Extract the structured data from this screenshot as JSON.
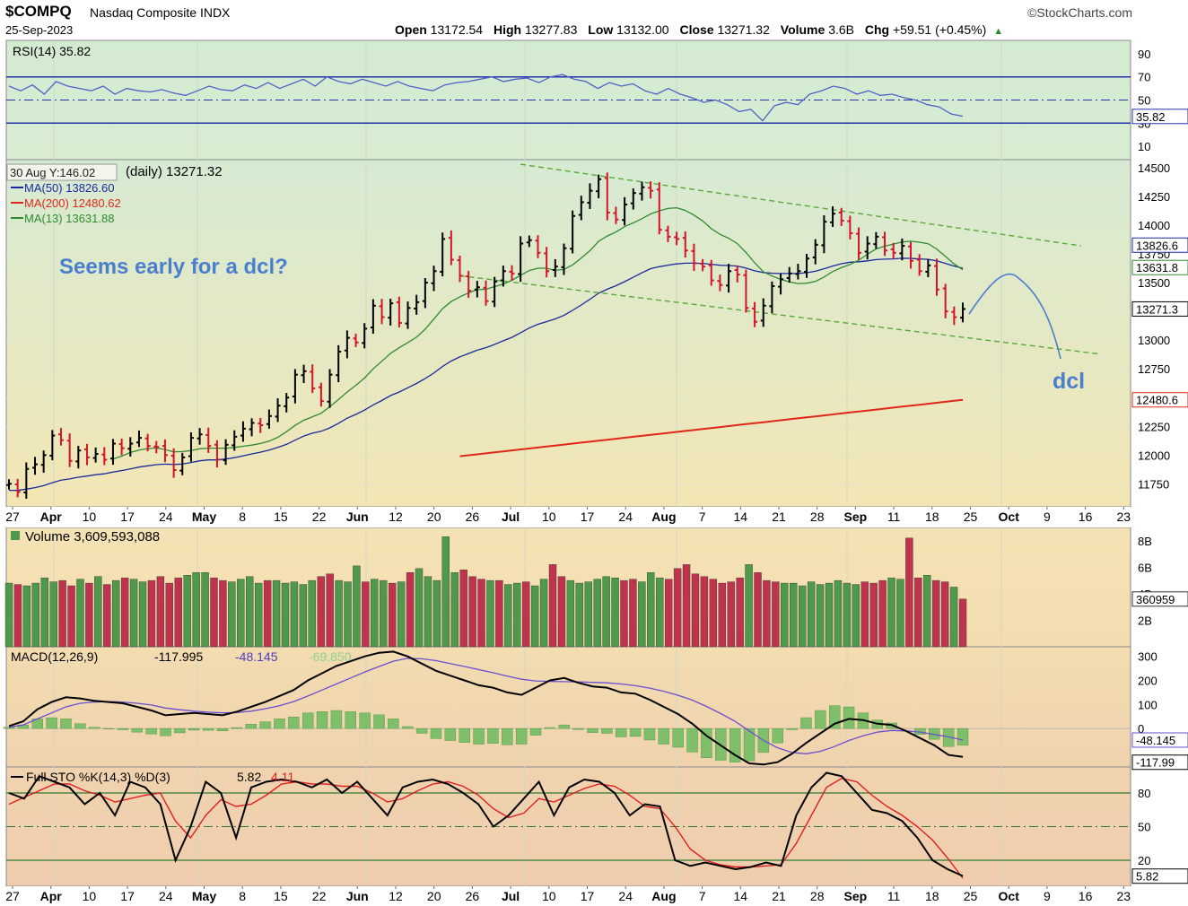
{
  "header": {
    "symbol": "$COMPQ",
    "name": "Nasdaq Composite INDX",
    "date": "25-Sep-2023",
    "brand": "©StockCharts.com",
    "open_label": "Open",
    "open": "13172.54",
    "high_label": "High",
    "high": "13277.83",
    "low_label": "Low",
    "low": "13132.00",
    "close_label": "Close",
    "close": "13271.32",
    "volume_label": "Volume",
    "volume": "3.6B",
    "chg_label": "Chg",
    "chg": "+59.51 (+0.45%)"
  },
  "colors": {
    "up": "#000000",
    "down": "#d4142a",
    "ma50": "#1a2a9c",
    "ma200": "#e0271a",
    "ma13": "#2f8a2f",
    "trend": "#5aa83a",
    "annotation": "#4a7fd0",
    "vol_up": "#4f9a4a",
    "vol_down": "#c0334f"
  },
  "chart_data": [
    {
      "type": "line",
      "panel": "RSI",
      "legend": "RSI(14) 35.82",
      "yticks": [
        90,
        70,
        50,
        30,
        10
      ],
      "last_label": "35.82",
      "ylim": [
        0,
        100
      ],
      "values": [
        62,
        58,
        63,
        55,
        66,
        62,
        60,
        58,
        62,
        55,
        60,
        58,
        57,
        59,
        56,
        54,
        58,
        62,
        59,
        58,
        63,
        60,
        65,
        60,
        64,
        68,
        62,
        70,
        66,
        64,
        68,
        65,
        62,
        66,
        62,
        60,
        58,
        63,
        65,
        66,
        68,
        70,
        66,
        68,
        69,
        65,
        70,
        72,
        68,
        66,
        60,
        65,
        62,
        64,
        58,
        55,
        60,
        55,
        52,
        48,
        50,
        46,
        40,
        42,
        32,
        45,
        48,
        46,
        55,
        58,
        62,
        60,
        55,
        58,
        54,
        55,
        52,
        50,
        46,
        44,
        38,
        36
      ]
    },
    {
      "type": "candlestick",
      "panel": "Price",
      "legend_title": "(daily) 13271.32",
      "tooltip": "30 Aug Y:146.02",
      "ma_legend": [
        "MA(50) 13826.60",
        "MA(200) 12480.62",
        "MA(13) 13631.88"
      ],
      "annotation_text": "Seems early for a dcl?",
      "dcl_label": "dcl",
      "yticks": [
        14500,
        14250,
        14000,
        13750,
        13500,
        13250,
        13000,
        12750,
        12500,
        12250,
        12000,
        11750
      ],
      "ylim": [
        11550,
        14570
      ],
      "last_labels": [
        "13826.6",
        "13631.8",
        "13271.3",
        "12480.6"
      ],
      "closes": [
        11750,
        11680,
        11880,
        11920,
        12000,
        12170,
        12130,
        11950,
        12040,
        11980,
        12010,
        11960,
        12100,
        12060,
        12100,
        12150,
        12080,
        12070,
        12000,
        11870,
        11980,
        12150,
        12180,
        12080,
        11960,
        12090,
        12160,
        12230,
        12280,
        12260,
        12340,
        12430,
        12500,
        12700,
        12730,
        12580,
        12470,
        12700,
        12900,
        13020,
        12980,
        13100,
        13300,
        13200,
        13320,
        13150,
        13280,
        13330,
        13500,
        13600,
        13880,
        13700,
        13560,
        13430,
        13460,
        13340,
        13510,
        13600,
        13580,
        13840,
        13870,
        13760,
        13600,
        13640,
        13800,
        14080,
        14200,
        14300,
        14400,
        14110,
        14050,
        14180,
        14280,
        14330,
        14300,
        13960,
        13900,
        13880,
        13780,
        13670,
        13640,
        13520,
        13480,
        13600,
        13570,
        13280,
        13160,
        13300,
        13470,
        13530,
        13580,
        13600,
        13710,
        13830,
        14030,
        14100,
        14040,
        13930,
        13760,
        13840,
        13900,
        13780,
        13760,
        13820,
        13690,
        13600,
        13650,
        13440,
        13250,
        13200,
        13271
      ]
    },
    {
      "type": "bar",
      "panel": "Volume",
      "legend": "Volume 3,609,593,088",
      "yticks": [
        "8B",
        "6B",
        "4B",
        "2B"
      ],
      "last_label": "360959",
      "ylim": [
        0,
        9
      ],
      "values": [
        4.8,
        4.7,
        4.6,
        4.8,
        5.2,
        4.9,
        5.0,
        4.6,
        5.1,
        4.8,
        5.3,
        4.7,
        5.0,
        5.2,
        5.1,
        4.9,
        5.0,
        5.3,
        4.8,
        5.2,
        5.4,
        5.6,
        5.6,
        5.2,
        5.0,
        4.9,
        5.1,
        5.3,
        4.8,
        5.0,
        5.0,
        4.8,
        4.9,
        4.7,
        5.0,
        5.3,
        5.5,
        5.0,
        4.9,
        6.1,
        4.9,
        5.1,
        5.0,
        4.8,
        4.9,
        5.6,
        5.9,
        5.3,
        5.0,
        8.3,
        5.6,
        5.8,
        5.3,
        5.1,
        5.0,
        5.0,
        4.7,
        4.8,
        4.9,
        4.6,
        5.1,
        6.2,
        5.3,
        5.0,
        4.8,
        4.9,
        5.1,
        5.3,
        5.2,
        5.0,
        5.1,
        4.9,
        5.6,
        5.2,
        5.1,
        5.9,
        6.2,
        5.5,
        5.3,
        5.1,
        4.8,
        4.9,
        5.2,
        6.2,
        5.6,
        5.0,
        4.9,
        4.8,
        4.8,
        4.6,
        4.9,
        4.7,
        4.8,
        5.0,
        4.8,
        4.7,
        4.9,
        4.8,
        5.0,
        5.2,
        5.1,
        8.2,
        5.2,
        5.4,
        5.0,
        4.9,
        4.5,
        3.6
      ]
    },
    {
      "type": "line",
      "panel": "MACD",
      "legend_name": "MACD(12,26,9)",
      "legend_macd": "-117.995",
      "legend_signal": "-48.145",
      "legend_hist": "-69.850",
      "yticks": [
        300,
        200,
        100,
        0
      ],
      "last_labels": [
        "-48.145",
        "-117.99"
      ],
      "ylim": [
        -160,
        340
      ],
      "macd": [
        10,
        30,
        80,
        110,
        130,
        125,
        115,
        110,
        105,
        90,
        75,
        55,
        60,
        65,
        60,
        55,
        70,
        90,
        110,
        135,
        160,
        200,
        230,
        260,
        280,
        300,
        315,
        320,
        300,
        270,
        240,
        220,
        200,
        180,
        170,
        150,
        140,
        170,
        200,
        210,
        190,
        175,
        170,
        150,
        145,
        120,
        90,
        60,
        20,
        -30,
        -70,
        -110,
        -145,
        -150,
        -140,
        -105,
        -60,
        -20,
        20,
        40,
        35,
        20,
        15,
        -10,
        -40,
        -70,
        -110,
        -118
      ],
      "signal": [
        5,
        15,
        40,
        65,
        90,
        105,
        110,
        112,
        110,
        105,
        98,
        85,
        78,
        72,
        68,
        65,
        66,
        72,
        82,
        95,
        112,
        135,
        160,
        185,
        210,
        235,
        258,
        280,
        292,
        290,
        282,
        270,
        258,
        245,
        232,
        218,
        205,
        198,
        196,
        195,
        194,
        192,
        190,
        185,
        178,
        168,
        155,
        138,
        118,
        92,
        62,
        30,
        -10,
        -50,
        -80,
        -100,
        -105,
        -95,
        -75,
        -50,
        -30,
        -15,
        -8,
        -10,
        -15,
        -25,
        -35,
        -48
      ]
    },
    {
      "type": "line",
      "panel": "Stochastic",
      "legend_name": "Full STO %K(14,3) %D(3)",
      "legend_k": "5.82",
      "legend_d": "4.11",
      "yticks": [
        80,
        50,
        20
      ],
      "last_label": "5.82",
      "ylim": [
        0,
        100
      ],
      "k": [
        80,
        75,
        95,
        90,
        85,
        70,
        80,
        60,
        90,
        85,
        70,
        20,
        50,
        90,
        80,
        40,
        85,
        90,
        92,
        90,
        85,
        92,
        80,
        90,
        75,
        60,
        85,
        90,
        92,
        88,
        80,
        70,
        50,
        60,
        75,
        90,
        60,
        85,
        92,
        90,
        80,
        60,
        70,
        68,
        20,
        15,
        18,
        15,
        12,
        14,
        18,
        15,
        60,
        85,
        98,
        95,
        80,
        65,
        62,
        55,
        40,
        20,
        12,
        6
      ],
      "d": [
        70,
        76,
        82,
        88,
        88,
        82,
        78,
        72,
        75,
        78,
        80,
        55,
        40,
        60,
        74,
        68,
        70,
        78,
        88,
        90,
        88,
        88,
        86,
        86,
        80,
        72,
        75,
        82,
        88,
        90,
        86,
        78,
        66,
        58,
        62,
        75,
        72,
        78,
        84,
        88,
        86,
        78,
        68,
        66,
        50,
        30,
        20,
        16,
        14,
        14,
        15,
        16,
        35,
        60,
        85,
        93,
        90,
        78,
        68,
        60,
        50,
        38,
        22,
        4
      ]
    }
  ],
  "x_axis": {
    "labels": [
      "27",
      "Apr",
      "10",
      "17",
      "24",
      "May",
      "8",
      "15",
      "22",
      "Jun",
      "12",
      "20",
      "26",
      "Jul",
      "10",
      "17",
      "24",
      "Aug",
      "7",
      "14",
      "21",
      "28",
      "Sep",
      "11",
      "18",
      "25",
      "Oct",
      "9",
      "16",
      "23"
    ],
    "bold": [
      false,
      true,
      false,
      false,
      false,
      true,
      false,
      false,
      false,
      true,
      false,
      false,
      false,
      true,
      false,
      false,
      false,
      true,
      false,
      false,
      false,
      false,
      true,
      false,
      false,
      false,
      true,
      false,
      false,
      false
    ]
  }
}
